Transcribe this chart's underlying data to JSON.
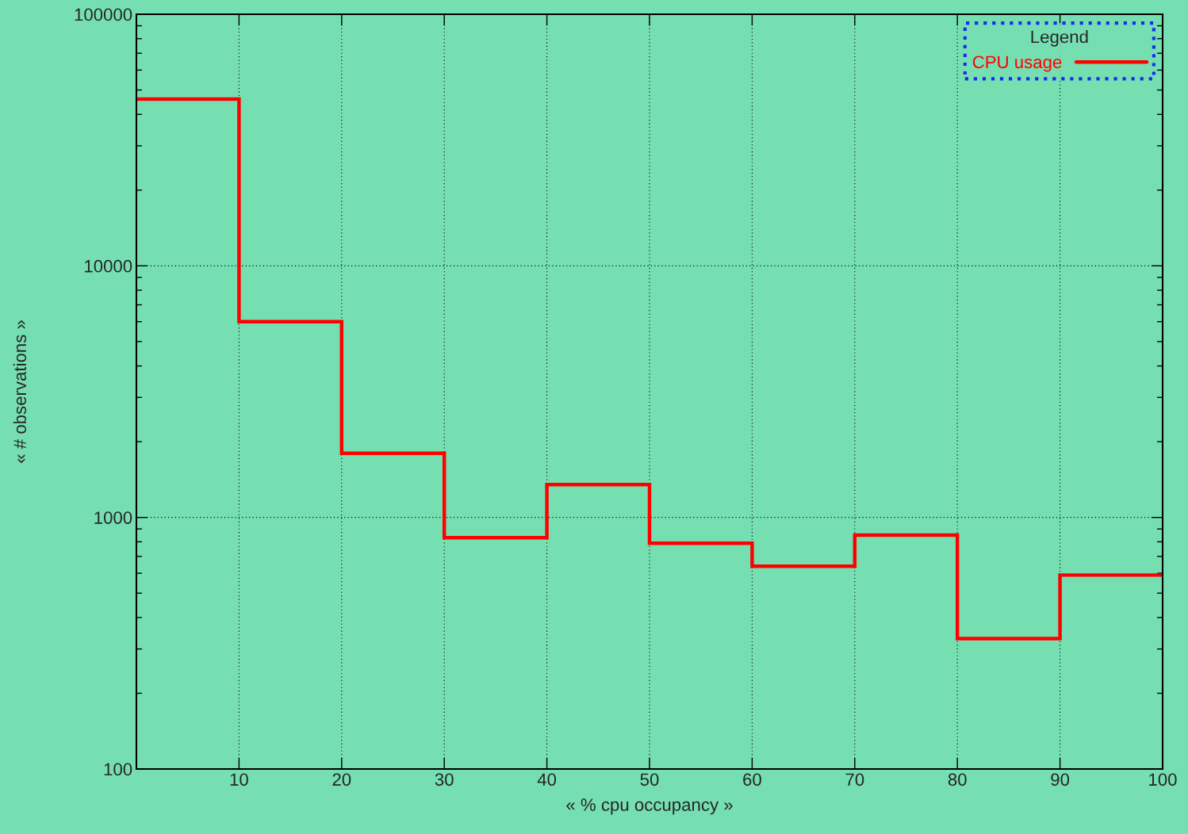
{
  "chart_data": {
    "type": "histogram",
    "xlabel": "« % cpu occupancy »",
    "ylabel": "« # observations »",
    "legend_title": "Legend",
    "bins": [
      0,
      10,
      20,
      30,
      40,
      50,
      60,
      70,
      80,
      90,
      100
    ],
    "series": [
      {
        "name": "CPU usage",
        "color": "#ff0000",
        "values": [
          46000,
          6000,
          1800,
          830,
          1350,
          790,
          640,
          850,
          330,
          590
        ]
      }
    ],
    "xlim": [
      0,
      100
    ],
    "xticks": [
      10,
      20,
      30,
      40,
      50,
      60,
      70,
      80,
      90,
      100
    ],
    "ylim": [
      100,
      100000
    ],
    "yticks": [
      100,
      1000,
      10000,
      100000
    ],
    "log": "y",
    "grid": true,
    "legend": "top right"
  }
}
